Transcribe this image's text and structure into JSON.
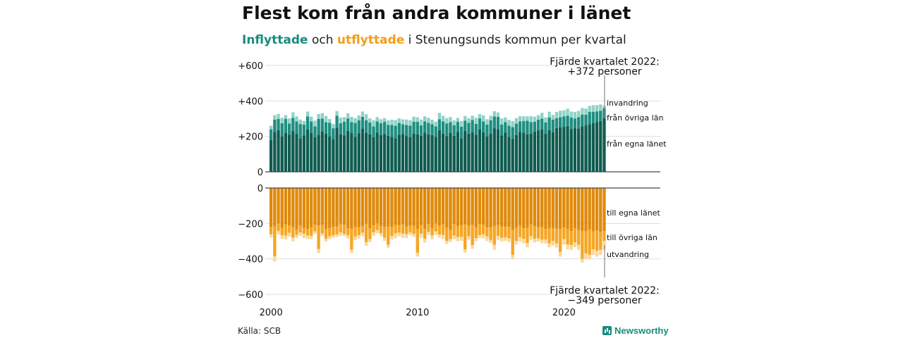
{
  "title": "Flest kom från andra kommuner i länet",
  "subtitle": {
    "part_in": "Inflyttade",
    "part_mid": " och ",
    "part_out": "utflyttade",
    "part_rest": " i Stenungsunds  kommun per kvartal"
  },
  "source": "Källa: SCB",
  "logo": {
    "text": "Newsworthy",
    "icon": "newsworthy-logo-icon"
  },
  "colors": {
    "in_lan": "#0f5c50",
    "in_ovriga": "#1e8e80",
    "in_invandring": "#8fd3c6",
    "out_lan": "#e08a0b",
    "out_ovriga": "#f5a623",
    "out_utvandring": "#fbd79a",
    "axis": "#444444",
    "grid": "#dddddd"
  },
  "chart_data": [
    {
      "type": "bar",
      "stacked": true,
      "title": "Inflyttade",
      "x_start": "2000 Q1",
      "x_end": "2022 Q4",
      "x_ticks": [
        "2000",
        "2010",
        "2020"
      ],
      "y_ticks": [
        "+600",
        "+400",
        "+200",
        "0"
      ],
      "ylim": [
        0,
        600
      ],
      "grid": true,
      "series": [
        {
          "name": "från egna länet",
          "values": [
            180,
            225,
            235,
            200,
            220,
            210,
            230,
            215,
            190,
            205,
            240,
            220,
            195,
            210,
            228,
            216,
            200,
            186,
            248,
            212,
            206,
            232,
            220,
            197,
            218,
            244,
            221,
            212,
            196,
            222,
            208,
            214,
            203,
            198,
            190,
            210,
            214,
            202,
            196,
            216,
            212,
            204,
            221,
            212,
            208,
            198,
            234,
            215,
            202,
            221,
            204,
            226,
            190,
            231,
            216,
            224,
            210,
            240,
            224,
            200,
            216,
            246,
            240,
            206,
            222,
            198,
            187,
            208,
            226,
            221,
            212,
            216,
            227,
            234,
            240,
            216,
            236,
            224,
            247,
            253,
            254,
            259,
            242,
            246,
            245,
            256,
            262,
            268,
            275,
            280,
            287,
            303
          ]
        },
        {
          "name": "från övriga län",
          "values": [
            60,
            70,
            64,
            75,
            78,
            63,
            75,
            69,
            80,
            61,
            72,
            64,
            62,
            89,
            73,
            64,
            77,
            60,
            69,
            62,
            76,
            69,
            60,
            79,
            73,
            66,
            70,
            66,
            60,
            62,
            66,
            68,
            62,
            67,
            70,
            66,
            55,
            62,
            65,
            67,
            70,
            58,
            64,
            64,
            61,
            58,
            62,
            70,
            71,
            59,
            59,
            56,
            65,
            58,
            60,
            68,
            61,
            61,
            60,
            66,
            75,
            66,
            70,
            61,
            59,
            62,
            65,
            64,
            58,
            66,
            76,
            65,
            56,
            61,
            61,
            63,
            70,
            70,
            55,
            55,
            59,
            58,
            64,
            55,
            64,
            67,
            60,
            71,
            64,
            61,
            58,
            55
          ]
        },
        {
          "name": "invandring",
          "values": [
            20,
            25,
            28,
            30,
            22,
            28,
            31,
            29,
            25,
            21,
            28,
            27,
            32,
            27,
            30,
            35,
            21,
            24,
            26,
            32,
            27,
            29,
            30,
            27,
            27,
            30,
            34,
            24,
            35,
            25,
            23,
            21,
            25,
            29,
            32,
            26,
            27,
            31,
            30,
            28,
            26,
            33,
            28,
            29,
            25,
            27,
            37,
            31,
            30,
            29,
            27,
            22,
            32,
            26,
            27,
            25,
            34,
            25,
            35,
            31,
            25,
            30,
            25,
            34,
            26,
            33,
            35,
            31,
            30,
            26,
            25,
            33,
            28,
            25,
            32,
            28,
            33,
            27,
            36,
            37,
            34,
            39,
            34,
            37,
            35,
            37,
            35,
            33,
            37,
            36,
            35,
            14
          ]
        }
      ],
      "annotation": {
        "line1": "Fjärde kvartalet 2022:",
        "line2": "+372 personer"
      }
    },
    {
      "type": "bar",
      "stacked": true,
      "title": "Utflyttade",
      "x_start": "2000 Q1",
      "x_end": "2022 Q4",
      "y_ticks": [
        "0",
        "−200",
        "−400",
        "−600"
      ],
      "ylim": [
        -600,
        0
      ],
      "grid": true,
      "series": [
        {
          "name": "till egna länet",
          "values": [
            -220,
            -218,
            -200,
            -226,
            -205,
            -212,
            -221,
            -235,
            -213,
            -226,
            -232,
            -224,
            -207,
            -211,
            -208,
            -232,
            -227,
            -220,
            -218,
            -201,
            -208,
            -229,
            -230,
            -220,
            -223,
            -213,
            -202,
            -227,
            -211,
            -200,
            -214,
            -220,
            -218,
            -221,
            -209,
            -210,
            -206,
            -219,
            -213,
            -215,
            -232,
            -210,
            -231,
            -203,
            -226,
            -200,
            -214,
            -206,
            -225,
            -237,
            -203,
            -215,
            -212,
            -206,
            -213,
            -207,
            -222,
            -204,
            -208,
            -222,
            -223,
            -215,
            -210,
            -218,
            -219,
            -220,
            -236,
            -225,
            -213,
            -227,
            -226,
            -206,
            -215,
            -221,
            -222,
            -232,
            -226,
            -228,
            -230,
            -231,
            -223,
            -232,
            -243,
            -227,
            -238,
            -242,
            -245,
            -235,
            -244,
            -240,
            -249,
            -243
          ]
        },
        {
          "name": "till övriga län",
          "values": [
            -41,
            -168,
            -42,
            -40,
            -63,
            -41,
            -60,
            -30,
            -38,
            -32,
            -37,
            -46,
            -38,
            -134,
            -49,
            -54,
            -45,
            -47,
            -44,
            -50,
            -51,
            -37,
            -118,
            -54,
            -43,
            -39,
            -103,
            -61,
            -40,
            -37,
            -41,
            -61,
            -102,
            -50,
            -47,
            -42,
            -52,
            -41,
            -37,
            -43,
            -133,
            -48,
            -55,
            -44,
            -42,
            -45,
            -48,
            -59,
            -73,
            -52,
            -65,
            -62,
            -65,
            -140,
            -59,
            -115,
            -60,
            -62,
            -53,
            -51,
            -70,
            -106,
            -60,
            -63,
            -60,
            -64,
            -142,
            -73,
            -64,
            -60,
            -84,
            -66,
            -71,
            -64,
            -69,
            -59,
            -87,
            -70,
            -82,
            -130,
            -65,
            -86,
            -79,
            -80,
            -82,
            -158,
            -124,
            -142,
            -102,
            -115,
            -100,
            -55
          ]
        },
        {
          "name": "utvandring",
          "values": [
            -18,
            -28,
            -20,
            -21,
            -22,
            -21,
            -20,
            -17,
            -18,
            -25,
            -19,
            -18,
            -15,
            -22,
            -13,
            -16,
            -16,
            -14,
            -14,
            -19,
            -13,
            -18,
            -19,
            -21,
            -19,
            -20,
            -21,
            -18,
            -19,
            -18,
            -17,
            -17,
            -17,
            -19,
            -27,
            -20,
            -23,
            -23,
            -16,
            -18,
            -21,
            -22,
            -22,
            -17,
            -21,
            -20,
            -17,
            -23,
            -17,
            -16,
            -20,
            -23,
            -21,
            -19,
            -18,
            -21,
            -18,
            -17,
            -23,
            -26,
            -17,
            -27,
            -23,
            -20,
            -19,
            -21,
            -20,
            -20,
            -25,
            -25,
            -25,
            -21,
            -21,
            -17,
            -20,
            -22,
            -22,
            -27,
            -24,
            -26,
            -31,
            -28,
            -27,
            -27,
            -29,
            -21,
            -31,
            -26,
            -32,
            -32,
            -29,
            -51
          ]
        }
      ],
      "annotation": {
        "line1": "Fjärde kvartalet 2022:",
        "line2": "−349 personer"
      }
    }
  ]
}
